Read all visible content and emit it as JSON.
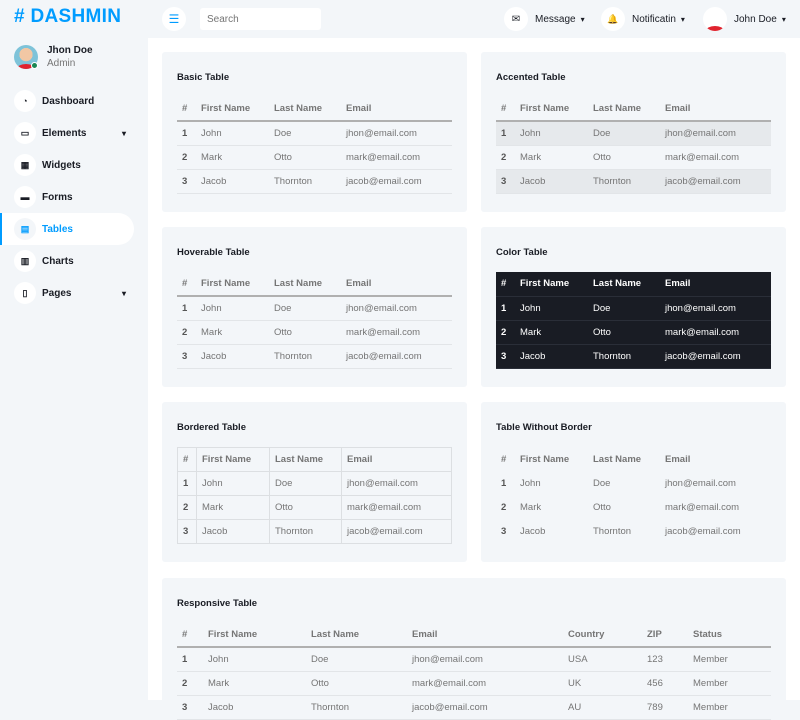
{
  "brand": {
    "name": "# DASHMIN",
    "color": "#009CFF"
  },
  "profile": {
    "name": "Jhon Doe",
    "role": "Admin"
  },
  "sidebar": {
    "items": [
      {
        "label": "Dashboard",
        "icon": "gauge-icon",
        "glyph": "◔"
      },
      {
        "label": "Elements",
        "icon": "laptop-icon",
        "glyph": "▭",
        "chevron": "▾"
      },
      {
        "label": "Widgets",
        "icon": "grid-icon",
        "glyph": "▦"
      },
      {
        "label": "Forms",
        "icon": "keyboard-icon",
        "glyph": "▬"
      },
      {
        "label": "Tables",
        "icon": "table-icon",
        "glyph": "▤",
        "active": true
      },
      {
        "label": "Charts",
        "icon": "chart-icon",
        "glyph": "▥"
      },
      {
        "label": "Pages",
        "icon": "file-icon",
        "glyph": "▯",
        "chevron": "▾"
      }
    ]
  },
  "topbar": {
    "menu_glyph": "☰",
    "search_placeholder": "Search",
    "message": "Message",
    "notification": "Notificatin",
    "user": "John Doe",
    "chevron": "▾",
    "mail_glyph": "✉",
    "bell_glyph": "🔔"
  },
  "tables": [
    {
      "title": "Basic Table",
      "style": "basic",
      "headers": [
        "#",
        "First Name",
        "Last Name",
        "Email"
      ],
      "rows": [
        [
          "1",
          "John",
          "Doe",
          "jhon@email.com"
        ],
        [
          "2",
          "Mark",
          "Otto",
          "mark@email.com"
        ],
        [
          "3",
          "Jacob",
          "Thornton",
          "jacob@email.com"
        ]
      ]
    },
    {
      "title": "Accented Table",
      "style": "accented",
      "headers": [
        "#",
        "First Name",
        "Last Name",
        "Email"
      ],
      "rows": [
        [
          "1",
          "John",
          "Doe",
          "jhon@email.com"
        ],
        [
          "2",
          "Mark",
          "Otto",
          "mark@email.com"
        ],
        [
          "3",
          "Jacob",
          "Thornton",
          "jacob@email.com"
        ]
      ]
    },
    {
      "title": "Hoverable Table",
      "style": "basic",
      "headers": [
        "#",
        "First Name",
        "Last Name",
        "Email"
      ],
      "rows": [
        [
          "1",
          "John",
          "Doe",
          "jhon@email.com"
        ],
        [
          "2",
          "Mark",
          "Otto",
          "mark@email.com"
        ],
        [
          "3",
          "Jacob",
          "Thornton",
          "jacob@email.com"
        ]
      ]
    },
    {
      "title": "Color Table",
      "style": "dark",
      "headers": [
        "#",
        "First Name",
        "Last Name",
        "Email"
      ],
      "rows": [
        [
          "1",
          "John",
          "Doe",
          "jhon@email.com"
        ],
        [
          "2",
          "Mark",
          "Otto",
          "mark@email.com"
        ],
        [
          "3",
          "Jacob",
          "Thornton",
          "jacob@email.com"
        ]
      ]
    },
    {
      "title": "Bordered Table",
      "style": "bordered",
      "headers": [
        "#",
        "First Name",
        "Last Name",
        "Email"
      ],
      "rows": [
        [
          "1",
          "John",
          "Doe",
          "jhon@email.com"
        ],
        [
          "2",
          "Mark",
          "Otto",
          "mark@email.com"
        ],
        [
          "3",
          "Jacob",
          "Thornton",
          "jacob@email.com"
        ]
      ]
    },
    {
      "title": "Table Without Border",
      "style": "noborder",
      "headers": [
        "#",
        "First Name",
        "Last Name",
        "Email"
      ],
      "rows": [
        [
          "1",
          "John",
          "Doe",
          "jhon@email.com"
        ],
        [
          "2",
          "Mark",
          "Otto",
          "mark@email.com"
        ],
        [
          "3",
          "Jacob",
          "Thornton",
          "jacob@email.com"
        ]
      ]
    },
    {
      "title": "Responsive Table",
      "style": "basic",
      "headers": [
        "#",
        "First Name",
        "Last Name",
        "Email",
        "Country",
        "ZIP",
        "Status"
      ],
      "rows": [
        [
          "1",
          "John",
          "Doe",
          "jhon@email.com",
          "USA",
          "123",
          "Member"
        ],
        [
          "2",
          "Mark",
          "Otto",
          "mark@email.com",
          "UK",
          "456",
          "Member"
        ],
        [
          "3",
          "Jacob",
          "Thornton",
          "jacob@email.com",
          "AU",
          "789",
          "Member"
        ]
      ]
    }
  ]
}
